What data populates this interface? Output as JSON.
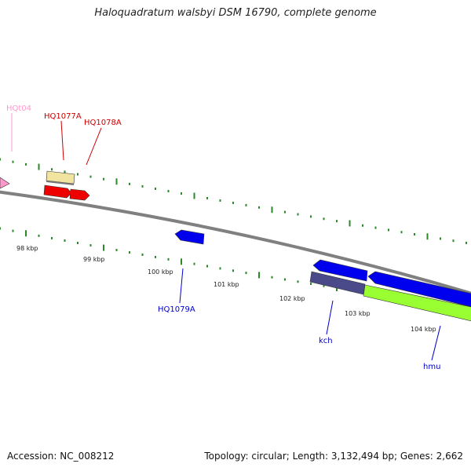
{
  "title": "Haloquadratum walsbyi DSM 16790, complete genome",
  "footer": {
    "accession": "Accession: NC_008212",
    "summary": "Topology: circular; Length: 3,132,494 bp; Genes: 2,662"
  },
  "colors": {
    "backbone": "#808080",
    "tick": "#2a8a2a",
    "forward_cds": "#0000ee",
    "reverse_cds": "#ee0000",
    "trna": "#ff99cc",
    "pale": "#f0e4a0",
    "slate": "#4a4a8a",
    "lime": "#99ff33"
  },
  "scale_labels": [
    {
      "text": "98 kbp"
    },
    {
      "text": "99 kbp"
    },
    {
      "text": "100 kbp"
    },
    {
      "text": "101 kbp"
    },
    {
      "text": "102 kbp"
    },
    {
      "text": "103 kbp"
    },
    {
      "text": "104 kbp"
    }
  ],
  "feature_labels": [
    {
      "text": "HQt04",
      "color": "#ff99cc"
    },
    {
      "text": "HQ1077A",
      "color": "#cc0000"
    },
    {
      "text": "HQ1078A",
      "color": "#cc0000"
    },
    {
      "text": "HQ1079A",
      "color": "#0000cc"
    },
    {
      "text": "kch",
      "color": "#0000cc"
    },
    {
      "text": "hmu",
      "color": "#0000cc"
    }
  ]
}
